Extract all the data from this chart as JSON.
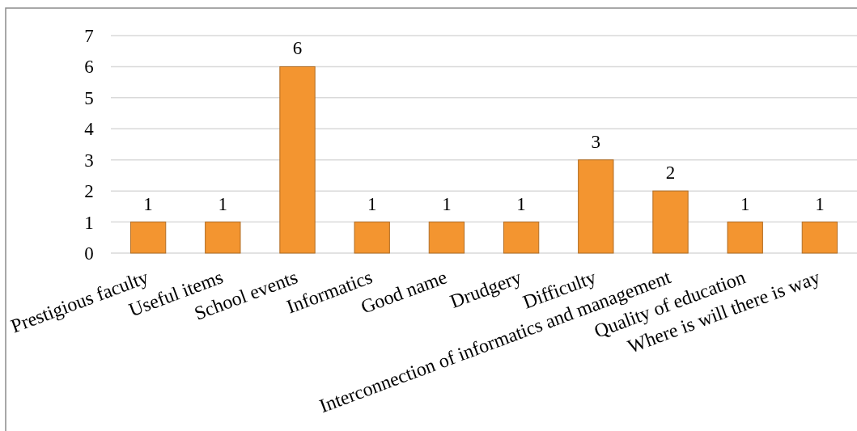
{
  "chart_data": {
    "type": "bar",
    "categories": [
      "Prestigious faculty",
      "Useful items",
      "School events",
      "Informatics",
      "Good name",
      "Drudgery",
      "Difficulty",
      "Interconnection of informatics and management",
      "Quality of education",
      "Where is will there is way"
    ],
    "values": [
      1,
      1,
      6,
      1,
      1,
      1,
      3,
      2,
      1,
      1
    ],
    "color": "#f39530",
    "ylim": [
      0,
      7
    ],
    "yticks": [
      0,
      1,
      2,
      3,
      4,
      5,
      6,
      7
    ],
    "grid": "y",
    "data_labels": true
  }
}
